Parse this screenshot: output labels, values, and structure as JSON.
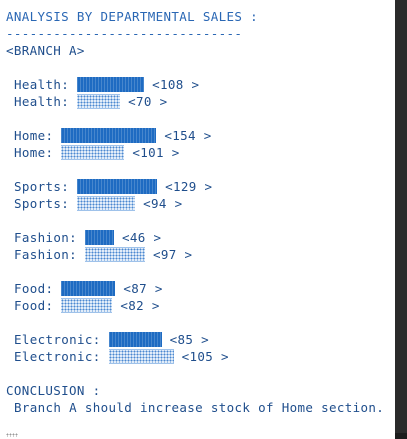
{
  "header": {
    "title": "ANALYSIS BY DEPARTMENTAL SALES :",
    "rule": "------------------------------",
    "branch": "<BRANCH A>"
  },
  "departments": [
    {
      "name": "Health",
      "current": {
        "label": "Health:",
        "value": 108,
        "value_text": "<108 >"
      },
      "previous": {
        "label": "Health:",
        "value": 70,
        "value_text": "<70 >"
      }
    },
    {
      "name": "Home",
      "current": {
        "label": "Home:",
        "value": 154,
        "value_text": "<154 >"
      },
      "previous": {
        "label": "Home:",
        "value": 101,
        "value_text": "<101 >"
      }
    },
    {
      "name": "Sports",
      "current": {
        "label": "Sports:",
        "value": 129,
        "value_text": "<129 >"
      },
      "previous": {
        "label": "Sports:",
        "value": 94,
        "value_text": "<94 >"
      }
    },
    {
      "name": "Fashion",
      "current": {
        "label": "Fashion:",
        "value": 46,
        "value_text": "<46 >"
      },
      "previous": {
        "label": "Fashion:",
        "value": 97,
        "value_text": "<97 >"
      }
    },
    {
      "name": "Food",
      "current": {
        "label": "Food:",
        "value": 87,
        "value_text": "<87 >"
      },
      "previous": {
        "label": "Food:",
        "value": 82,
        "value_text": "<82 >"
      }
    },
    {
      "name": "Electronic",
      "current": {
        "label": "Electronic:",
        "value": 85,
        "value_text": "<85 >"
      },
      "previous": {
        "label": "Electronic:",
        "value": 105,
        "value_text": "<105 >"
      }
    }
  ],
  "conclusion": {
    "heading": "CONCLUSION :",
    "text": "Branch A should increase stock of Home section."
  },
  "colors": {
    "text": "#1f4e8c",
    "solid_bar": "#1e6bc2",
    "dotted_bar": "#4b88d0",
    "scrollbar": "#2b2b2b"
  }
}
